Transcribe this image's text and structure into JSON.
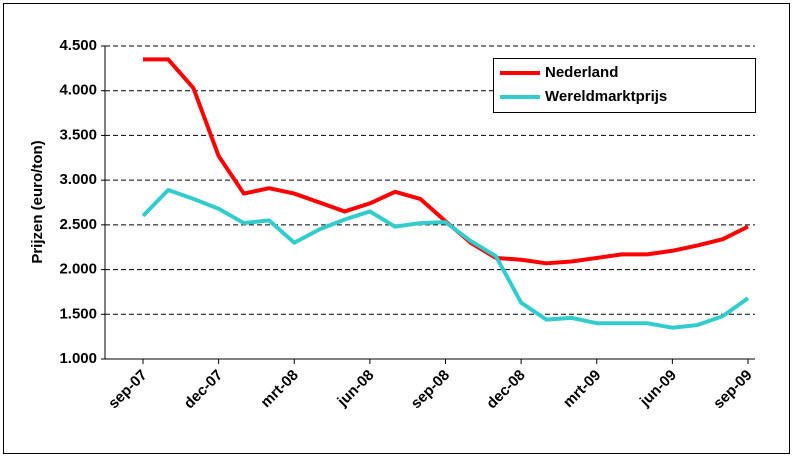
{
  "chart_data": {
    "type": "line",
    "y_label": "Prijzen (euro/ton)",
    "categories": [
      "sep-07",
      null,
      null,
      "dec-07",
      null,
      null,
      "mrt-08",
      null,
      null,
      "jun-08",
      null,
      null,
      "sep-08",
      null,
      null,
      "dec-08",
      null,
      null,
      "mrt-09",
      null,
      null,
      "jun-09",
      null,
      null,
      "sep-09"
    ],
    "series": [
      {
        "name": "Nederland",
        "color": "#ff0000",
        "values": [
          4350,
          4350,
          4030,
          3270,
          2850,
          2910,
          2850,
          2750,
          2650,
          2740,
          2870,
          2790,
          2540,
          2300,
          2130,
          2110,
          2070,
          2090,
          2130,
          2170,
          2170,
          2210,
          2270,
          2340,
          2480
        ]
      },
      {
        "name": "Wereldmarktprijs",
        "color": "#33cccc",
        "values": [
          2600,
          2890,
          2790,
          2680,
          2520,
          2550,
          2300,
          2450,
          2560,
          2650,
          2480,
          2520,
          2530,
          2320,
          2150,
          1630,
          1440,
          1460,
          1400,
          1400,
          1400,
          1350,
          1380,
          1480,
          1680
        ]
      }
    ],
    "ylim": [
      1000,
      4500
    ],
    "yticks": [
      {
        "value": 1000,
        "label": "1.000"
      },
      {
        "value": 1500,
        "label": "1.500"
      },
      {
        "value": 2000,
        "label": "2.000"
      },
      {
        "value": 2500,
        "label": "2.500"
      },
      {
        "value": 3000,
        "label": "3.000"
      },
      {
        "value": 3500,
        "label": "3.500"
      },
      {
        "value": 4000,
        "label": "4.000"
      },
      {
        "value": 4500,
        "label": "4.500"
      }
    ],
    "grid": true,
    "legend": "upper right"
  }
}
